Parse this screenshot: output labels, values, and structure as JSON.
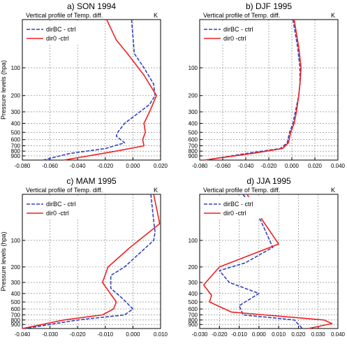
{
  "figure": {
    "ylabel": "Pressure levels (hpa)",
    "panel_subtitle": "Vertical profile of Temp. diff.",
    "unit": "K"
  },
  "chart_data": [
    {
      "type": "line",
      "title": "a) SON 1994",
      "subtitle": "Vertical profile of Temp. diff.",
      "unit_label": "K",
      "ylabel": "Pressure levels (hpa)",
      "xlim": [
        -0.08,
        0.02
      ],
      "xticks": [
        -0.08,
        -0.06,
        -0.04,
        -0.02,
        0.0,
        0.02
      ],
      "xtick_labels": [
        "-0.080",
        "-0.060",
        "-0.040",
        "-0.020",
        "0.000",
        "0.020"
      ],
      "yscale": "log",
      "ylim": [
        30,
        1000
      ],
      "yticks": [
        100,
        200,
        300,
        400,
        500,
        600,
        700,
        800,
        900
      ],
      "ytick_labels": [
        "100",
        "200",
        "300",
        "400",
        "500",
        "600",
        "700",
        "800",
        "900"
      ],
      "grid": true,
      "legend_position": "top-left",
      "series": [
        {
          "name": "dirBC - ctrl",
          "color": "#3344bb",
          "dashed": true,
          "points": [
            [
              -0.001,
              30
            ],
            [
              0.001,
              70
            ],
            [
              0.008,
              100
            ],
            [
              0.015,
              150
            ],
            [
              0.016,
              200
            ],
            [
              0.012,
              250
            ],
            [
              0.005,
              300
            ],
            [
              -0.006,
              400
            ],
            [
              -0.011,
              500
            ],
            [
              -0.012,
              550
            ],
            [
              -0.006,
              650
            ],
            [
              -0.02,
              750
            ],
            [
              -0.046,
              850
            ],
            [
              -0.065,
              1000
            ]
          ]
        },
        {
          "name": "dir0 -ctrl",
          "color": "#ee2222",
          "dashed": false,
          "points": [
            [
              -0.019,
              30
            ],
            [
              -0.012,
              50
            ],
            [
              -0.004,
              70
            ],
            [
              0.008,
              120
            ],
            [
              0.017,
              200
            ],
            [
              0.012,
              300
            ],
            [
              0.008,
              400
            ],
            [
              0.009,
              500
            ],
            [
              0.007,
              600
            ],
            [
              0.008,
              700
            ],
            [
              -0.012,
              800
            ],
            [
              -0.05,
              1000
            ]
          ]
        }
      ]
    },
    {
      "type": "line",
      "title": "b) DJF 1995",
      "subtitle": "Vertical profile of Temp. diff.",
      "unit_label": "K",
      "ylabel": "",
      "xlim": [
        -0.08,
        0.04
      ],
      "xticks": [
        -0.08,
        -0.06,
        -0.04,
        -0.02,
        0.0,
        0.02,
        0.04
      ],
      "xtick_labels": [
        "-0.080",
        "-0.060",
        "-0.040",
        "-0.020",
        "0.000",
        "0.020",
        "0.040"
      ],
      "yscale": "log",
      "ylim": [
        30,
        1000
      ],
      "yticks": [
        100,
        200,
        300,
        400,
        500,
        600,
        700,
        800,
        900
      ],
      "ytick_labels": [
        "100",
        "200",
        "300",
        "400",
        "500",
        "600",
        "700",
        "800",
        "900"
      ],
      "grid": true,
      "legend_position": "top-left",
      "series": [
        {
          "name": "dirBC - ctrl",
          "color": "#3344bb",
          "dashed": true,
          "points": [
            [
              0.001,
              30
            ],
            [
              0.005,
              60
            ],
            [
              0.007,
              100
            ],
            [
              0.007,
              150
            ],
            [
              0.006,
              200
            ],
            [
              0.003,
              300
            ],
            [
              0.001,
              400
            ],
            [
              -0.002,
              500
            ],
            [
              -0.004,
              650
            ],
            [
              -0.01,
              750
            ],
            [
              -0.04,
              850
            ],
            [
              -0.075,
              1000
            ]
          ]
        },
        {
          "name": "dir0 -ctrl",
          "color": "#ee2222",
          "dashed": false,
          "points": [
            [
              0.002,
              30
            ],
            [
              0.006,
              60
            ],
            [
              0.008,
              100
            ],
            [
              0.007,
              150
            ],
            [
              0.006,
              200
            ],
            [
              0.004,
              300
            ],
            [
              0.002,
              400
            ],
            [
              -0.001,
              500
            ],
            [
              -0.003,
              650
            ],
            [
              -0.008,
              750
            ],
            [
              -0.035,
              850
            ],
            [
              -0.076,
              1000
            ]
          ]
        }
      ]
    },
    {
      "type": "line",
      "title": "c) MAM 1995",
      "subtitle": "Vertical profile of Temp. diff.",
      "unit_label": "K",
      "ylabel": "Pressure levels (hpa)",
      "xlim": [
        -0.04,
        0.01
      ],
      "xticks": [
        -0.04,
        -0.03,
        -0.02,
        -0.01,
        0.0,
        0.01
      ],
      "xtick_labels": [
        "-0.040",
        "-0.030",
        "-0.020",
        "-0.010",
        "0.000",
        "0.010"
      ],
      "yscale": "log",
      "ylim": [
        30,
        1000
      ],
      "yticks": [
        100,
        200,
        300,
        400,
        500,
        600,
        700,
        800,
        900
      ],
      "ytick_labels": [
        "100",
        "200",
        "300",
        "400",
        "500",
        "600",
        "700",
        "800",
        "900"
      ],
      "grid": true,
      "legend_position": "top-left",
      "series": [
        {
          "name": "dirBC - ctrl",
          "color": "#3344bb",
          "dashed": true,
          "points": [
            [
              0.0065,
              30
            ],
            [
              0.0075,
              60
            ],
            [
              0.008,
              80
            ],
            [
              0.0075,
              100
            ],
            [
              -0.003,
              200
            ],
            [
              -0.008,
              250
            ],
            [
              -0.008,
              350
            ],
            [
              -0.004,
              450
            ],
            [
              0.0,
              600
            ],
            [
              -0.003,
              700
            ],
            [
              -0.02,
              800
            ],
            [
              -0.039,
              1000
            ]
          ]
        },
        {
          "name": "dir0 -ctrl",
          "color": "#ee2222",
          "dashed": false,
          "points": [
            [
              0.0075,
              30
            ],
            [
              0.0095,
              60
            ],
            [
              0.0096,
              65
            ],
            [
              -0.001,
              120
            ],
            [
              -0.009,
              200
            ],
            [
              -0.011,
              300
            ],
            [
              -0.006,
              500
            ],
            [
              -0.007,
              600
            ],
            [
              -0.011,
              700
            ],
            [
              -0.025,
              800
            ],
            [
              -0.04,
              1000
            ]
          ]
        }
      ]
    },
    {
      "type": "line",
      "title": "d) JJA 1995",
      "subtitle": "Vertical profile of Temp. diff.",
      "unit_label": "K",
      "ylabel": "",
      "xlim": [
        -0.03,
        0.04
      ],
      "xticks": [
        -0.03,
        -0.02,
        -0.01,
        0.0,
        0.01,
        0.02,
        0.03,
        0.04
      ],
      "xtick_labels": [
        "-0.030",
        "-0.020",
        "-0.010",
        "0.000",
        "0.010",
        "0.020",
        "0.030",
        "0.040"
      ],
      "yscale": "log",
      "ylim": [
        30,
        1000
      ],
      "yticks": [
        100,
        200,
        300,
        400,
        500,
        600,
        700,
        800,
        900
      ],
      "ytick_labels": [
        "100",
        "200",
        "300",
        "400",
        "500",
        "600",
        "700",
        "800",
        "900"
      ],
      "grid": true,
      "legend_position": "top-left",
      "series": [
        {
          "name": "dirBC - ctrl",
          "color": "#3344bb",
          "dashed": true,
          "points": [
            [
              -0.008,
              30
            ],
            [
              0.001,
              60
            ],
            [
              0.007,
              120
            ],
            [
              -0.007,
              180
            ],
            [
              -0.02,
              220
            ],
            [
              -0.015,
              300
            ],
            [
              0.0,
              400
            ],
            [
              -0.01,
              550
            ],
            [
              -0.008,
              700
            ],
            [
              0.018,
              800
            ],
            [
              0.02,
              900
            ],
            [
              0.022,
              1000
            ]
          ]
        },
        {
          "name": "dir0 -ctrl",
          "color": "#ee2222",
          "dashed": false,
          "points": [
            [
              -0.006,
              30
            ],
            [
              0.002,
              60
            ],
            [
              0.01,
              110
            ],
            [
              -0.02,
              200
            ],
            [
              -0.028,
              320
            ],
            [
              -0.024,
              420
            ],
            [
              -0.025,
              500
            ],
            [
              -0.014,
              650
            ],
            [
              0.033,
              800
            ],
            [
              0.037,
              880
            ],
            [
              0.025,
              1000
            ]
          ]
        }
      ]
    }
  ]
}
